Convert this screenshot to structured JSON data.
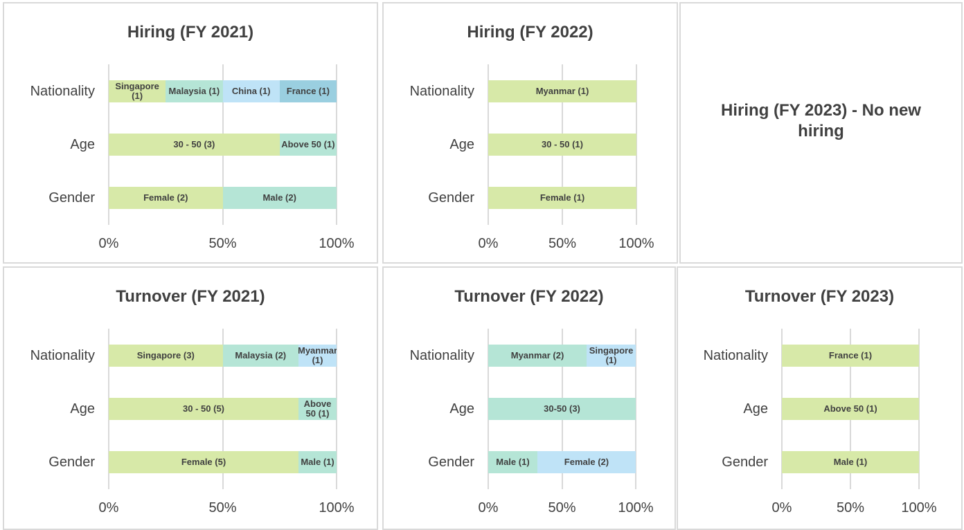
{
  "chart_data": [
    {
      "type": "bar",
      "orientation": "horizontal",
      "stacked": true,
      "title": "Hiring (FY 2021)",
      "categories": [
        "Nationality",
        "Age",
        "Gender"
      ],
      "bars": [
        [
          {
            "label": "Singapore (1)",
            "value": 25,
            "color": "#d7e9a8"
          },
          {
            "label": "Malaysia (1)",
            "value": 25,
            "color": "#b5e5d6"
          },
          {
            "label": "China (1)",
            "value": 25,
            "color": "#bfe3f7"
          },
          {
            "label": "France (1)",
            "value": 25,
            "color": "#9acfe0"
          }
        ],
        [
          {
            "label": "30 - 50 (3)",
            "value": 75,
            "color": "#d7e9a8"
          },
          {
            "label": "Above 50 (1)",
            "value": 25,
            "color": "#b5e5d6"
          }
        ],
        [
          {
            "label": "Female (2)",
            "value": 50,
            "color": "#d7e9a8"
          },
          {
            "label": "Male (2)",
            "value": 50,
            "color": "#b5e5d6"
          }
        ]
      ],
      "xlim": [
        0,
        100
      ],
      "xticks": [
        {
          "value": 0,
          "label": "0%"
        },
        {
          "value": 50,
          "label": "50%"
        },
        {
          "value": 100,
          "label": "100%"
        }
      ],
      "grid": true
    },
    {
      "type": "bar",
      "orientation": "horizontal",
      "stacked": true,
      "title": "Hiring (FY 2022)",
      "categories": [
        "Nationality",
        "Age",
        "Gender"
      ],
      "bars": [
        [
          {
            "label": "Myanmar (1)",
            "value": 100,
            "color": "#d7e9a8"
          }
        ],
        [
          {
            "label": "30 - 50 (1)",
            "value": 100,
            "color": "#d7e9a8"
          }
        ],
        [
          {
            "label": "Female (1)",
            "value": 100,
            "color": "#d7e9a8"
          }
        ]
      ],
      "xlim": [
        0,
        100
      ],
      "xticks": [
        {
          "value": 0,
          "label": "0%"
        },
        {
          "value": 50,
          "label": "50%"
        },
        {
          "value": 100,
          "label": "100%"
        }
      ],
      "grid": true
    },
    {
      "type": "bar",
      "orientation": "horizontal",
      "stacked": true,
      "title": "Turnover (FY 2021)",
      "categories": [
        "Nationality",
        "Age",
        "Gender"
      ],
      "bars": [
        [
          {
            "label": "Singapore (3)",
            "value": 50,
            "color": "#d7e9a8"
          },
          {
            "label": "Malaysia (2)",
            "value": 33.3,
            "color": "#b5e5d6"
          },
          {
            "label": "Myanmar (1)",
            "value": 16.7,
            "color": "#bfe3f7"
          }
        ],
        [
          {
            "label": "30 - 50 (5)",
            "value": 83.3,
            "color": "#d7e9a8"
          },
          {
            "label": "Above 50 (1)",
            "value": 16.7,
            "color": "#b5e5d6"
          }
        ],
        [
          {
            "label": "Female (5)",
            "value": 83.3,
            "color": "#d7e9a8"
          },
          {
            "label": "Male (1)",
            "value": 16.7,
            "color": "#b5e5d6"
          }
        ]
      ],
      "xlim": [
        0,
        100
      ],
      "xticks": [
        {
          "value": 0,
          "label": "0%"
        },
        {
          "value": 50,
          "label": "50%"
        },
        {
          "value": 100,
          "label": "100%"
        }
      ],
      "grid": true
    },
    {
      "type": "bar",
      "orientation": "horizontal",
      "stacked": true,
      "title": "Turnover (FY 2022)",
      "categories": [
        "Nationality",
        "Age",
        "Gender"
      ],
      "bars": [
        [
          {
            "label": "Myanmar (2)",
            "value": 66.7,
            "color": "#b5e5d6"
          },
          {
            "label": "Singapore (1)",
            "value": 33.3,
            "color": "#bfe3f7"
          }
        ],
        [
          {
            "label": "30-50 (3)",
            "value": 100,
            "color": "#b5e5d6"
          }
        ],
        [
          {
            "label": "Male (1)",
            "value": 33.3,
            "color": "#b5e5d6"
          },
          {
            "label": "Female (2)",
            "value": 66.7,
            "color": "#bfe3f7"
          }
        ]
      ],
      "xlim": [
        0,
        100
      ],
      "xticks": [
        {
          "value": 0,
          "label": "0%"
        },
        {
          "value": 50,
          "label": "50%"
        },
        {
          "value": 100,
          "label": "100%"
        }
      ],
      "grid": true
    },
    {
      "type": "bar",
      "orientation": "horizontal",
      "stacked": true,
      "title": "Turnover (FY 2023)",
      "categories": [
        "Nationality",
        "Age",
        "Gender"
      ],
      "bars": [
        [
          {
            "label": "France (1)",
            "value": 100,
            "color": "#d7e9a8"
          }
        ],
        [
          {
            "label": "Above 50 (1)",
            "value": 100,
            "color": "#d7e9a8"
          }
        ],
        [
          {
            "label": "Male (1)",
            "value": 100,
            "color": "#d7e9a8"
          }
        ]
      ],
      "xlim": [
        0,
        100
      ],
      "xticks": [
        {
          "value": 0,
          "label": "0%"
        },
        {
          "value": 50,
          "label": "50%"
        },
        {
          "value": 100,
          "label": "100%"
        }
      ],
      "grid": true
    }
  ],
  "notice": {
    "title": "Hiring (FY 2023) - No new hiring"
  }
}
